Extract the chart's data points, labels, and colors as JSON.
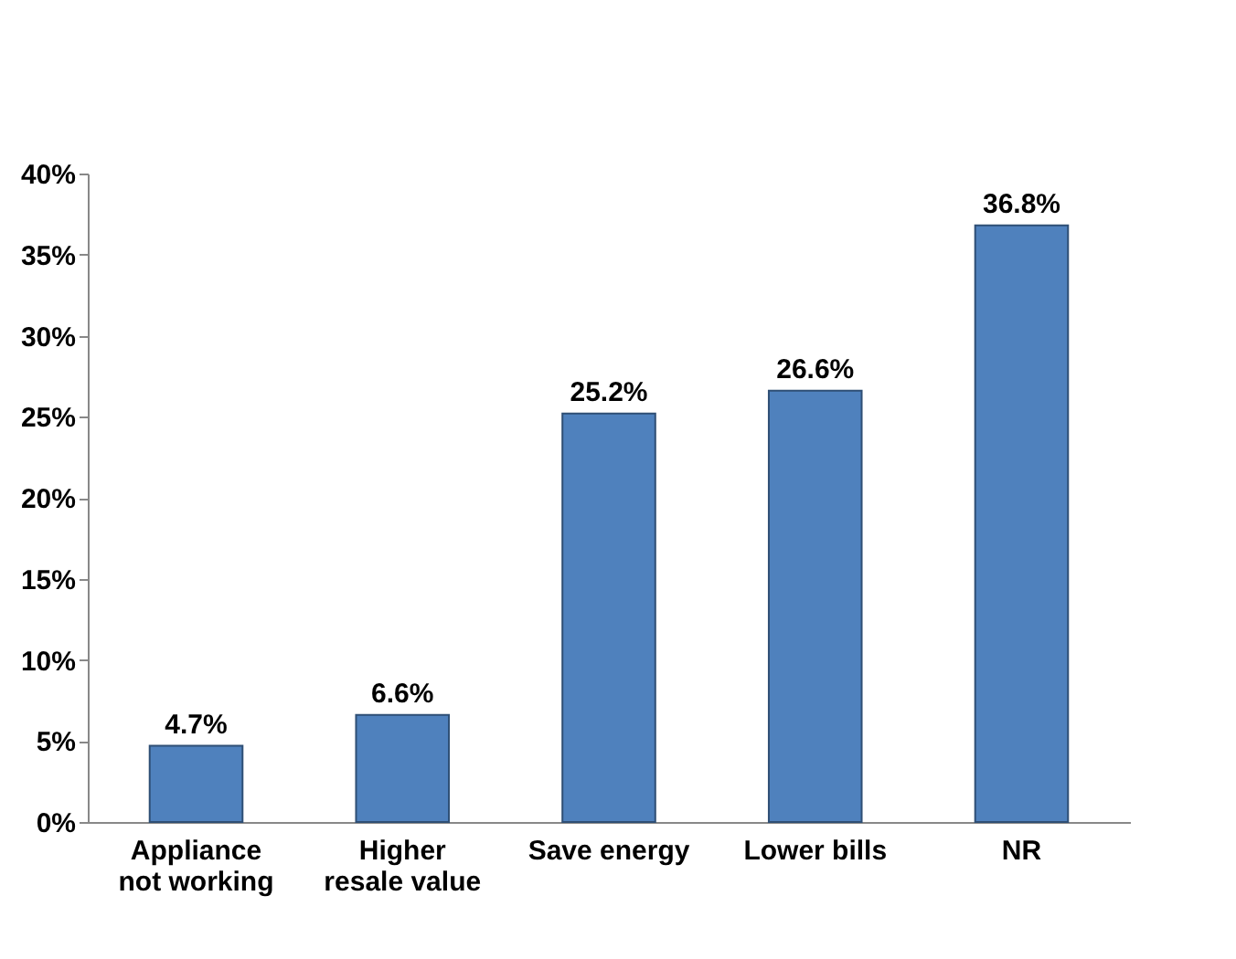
{
  "chart_data": {
    "type": "bar",
    "categories": [
      "Appliance not working",
      "Higher resale value",
      "Save energy",
      "Lower bills",
      "NR"
    ],
    "values": [
      4.7,
      6.6,
      25.2,
      26.6,
      36.8
    ],
    "color": "#4f81bd",
    "value_labels": [
      "4.7%",
      "6.6%",
      "25.2%",
      "26.6%",
      "36.8%"
    ],
    "ylim": [
      0,
      40
    ],
    "yticks": [
      {
        "value": 0,
        "label": "0%"
      },
      {
        "value": 5,
        "label": "5%"
      },
      {
        "value": 10,
        "label": "10%"
      },
      {
        "value": 15,
        "label": "15%"
      },
      {
        "value": 20,
        "label": "20%"
      },
      {
        "value": 25,
        "label": "25%"
      },
      {
        "value": 30,
        "label": "30%"
      },
      {
        "value": 35,
        "label": "35%"
      },
      {
        "value": 40,
        "label": "40%"
      }
    ],
    "grid": false
  }
}
